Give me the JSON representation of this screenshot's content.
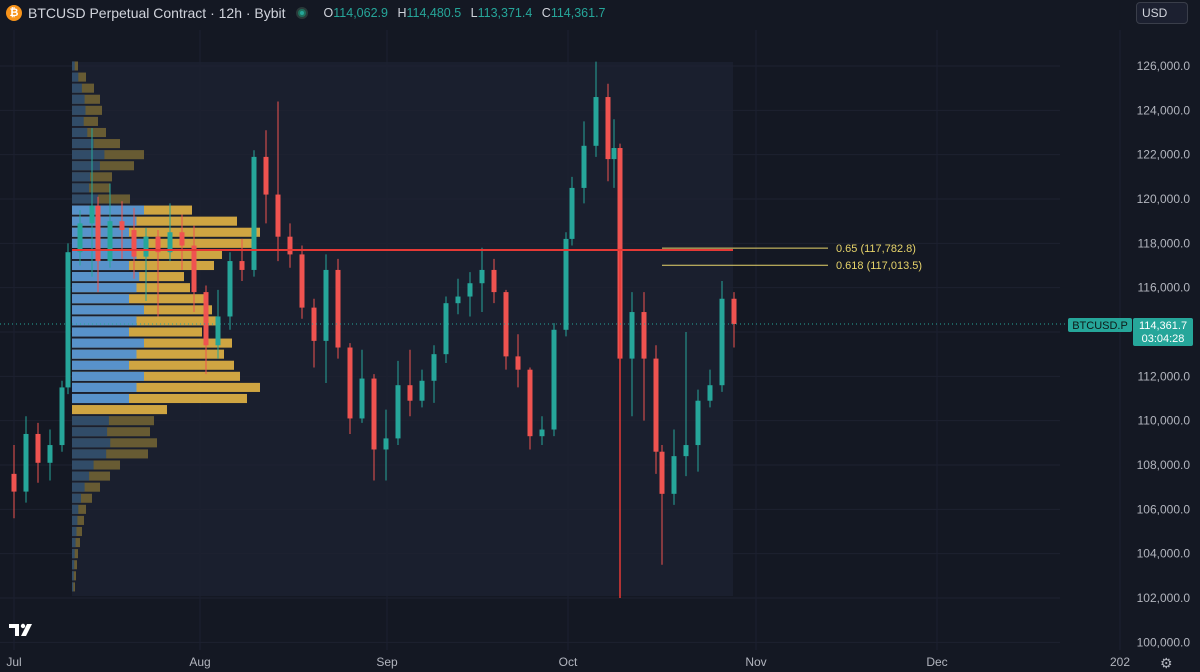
{
  "header": {
    "coin_icon": "bitcoin-icon",
    "symbol_title": "BTCUSD Perpetual Contract · 12h · Bybit",
    "ohlc": {
      "o_label": "O",
      "o_value": "114,062.9",
      "h_label": "H",
      "h_value": "114,480.5",
      "l_label": "L",
      "l_value": "113,371.4",
      "c_label": "C",
      "c_value": "114,361.7"
    },
    "currency": "USD"
  },
  "price_tag": {
    "symbol": "BTCUSD.P",
    "price": "114,361.7",
    "countdown": "03:04:28"
  },
  "fib_levels": [
    {
      "label": "0.65 (117,782.8)",
      "value": 117782.8
    },
    {
      "label": "0.618 (117,013.5)",
      "value": 117013.5
    }
  ],
  "colors": {
    "background": "#141823",
    "panel": "#1a1f2e",
    "up": "#26a69a",
    "down": "#ef5350",
    "vp_value_area": "#4a90d9",
    "vp_yellow": "#e8b845",
    "vp_dim": "#7a6a35",
    "red_line": "#e53935",
    "fib": "#e6d36a"
  },
  "chart_data": {
    "type": "candlestick",
    "yaxis_ticks": [
      100000,
      102000,
      104000,
      106000,
      108000,
      110000,
      112000,
      114000,
      116000,
      118000,
      120000,
      122000,
      124000,
      126000
    ],
    "yaxis_tick_labels": [
      "100,000.0",
      "102,000.0",
      "104,000.0",
      "106,000.0",
      "108,000.0",
      "110,000.0",
      "112,000.0",
      "114,000.0",
      "116,000.0",
      "118,000.0",
      "120,000.0",
      "122,000.0",
      "124,000.0",
      "126,000.0"
    ],
    "xaxis_labels": [
      "Jul",
      "Aug",
      "Sep",
      "Oct",
      "Nov",
      "Dec",
      "202"
    ],
    "ylim": [
      99500,
      127200
    ],
    "last_price": 114361.7,
    "horizontal_line": 117700,
    "vertical_line": {
      "date": "2025-10-10",
      "low": 102000
    },
    "candles": [
      [
        "2025-07-01",
        107600,
        108900,
        105600,
        106800
      ],
      [
        "2025-07-03",
        106800,
        110200,
        106300,
        109400
      ],
      [
        "2025-07-05",
        109400,
        109900,
        107200,
        108100
      ],
      [
        "2025-07-07",
        108100,
        109600,
        107300,
        108900
      ],
      [
        "2025-07-09",
        108900,
        111800,
        108600,
        111500
      ],
      [
        "2025-07-10",
        111500,
        118000,
        111200,
        117600
      ],
      [
        "2025-07-12",
        117600,
        119500,
        117000,
        118900
      ],
      [
        "2025-07-14",
        118900,
        123200,
        116500,
        119700
      ],
      [
        "2025-07-15",
        119700,
        120100,
        115800,
        117200
      ],
      [
        "2025-07-17",
        117200,
        120700,
        116900,
        119000
      ],
      [
        "2025-07-19",
        119000,
        119900,
        117300,
        118600
      ],
      [
        "2025-07-21",
        118600,
        119600,
        116400,
        117400
      ],
      [
        "2025-07-23",
        117400,
        118700,
        115400,
        118300
      ],
      [
        "2025-07-25",
        118300,
        118600,
        114700,
        117600
      ],
      [
        "2025-07-27",
        117600,
        119800,
        117200,
        118500
      ],
      [
        "2025-07-29",
        118500,
        119300,
        116800,
        117900
      ],
      [
        "2025-07-31",
        117900,
        118800,
        114900,
        115800
      ],
      [
        "2025-08-02",
        115800,
        116100,
        112100,
        113400
      ],
      [
        "2025-08-04",
        113400,
        115900,
        112800,
        114700
      ],
      [
        "2025-08-06",
        114700,
        117600,
        114100,
        117200
      ],
      [
        "2025-08-08",
        117200,
        118200,
        116300,
        116800
      ],
      [
        "2025-08-10",
        116800,
        122200,
        116500,
        121900
      ],
      [
        "2025-08-12",
        121900,
        123100,
        118900,
        120200
      ],
      [
        "2025-08-14",
        120200,
        124400,
        117200,
        118300
      ],
      [
        "2025-08-16",
        118300,
        118900,
        116900,
        117500
      ],
      [
        "2025-08-18",
        117500,
        117900,
        114600,
        115100
      ],
      [
        "2025-08-20",
        115100,
        115500,
        112400,
        113600
      ],
      [
        "2025-08-22",
        113600,
        117500,
        111700,
        116800
      ],
      [
        "2025-08-24",
        116800,
        117300,
        112800,
        113300
      ],
      [
        "2025-08-26",
        113300,
        113500,
        109400,
        110100
      ],
      [
        "2025-08-28",
        110100,
        113200,
        109900,
        111900
      ],
      [
        "2025-08-30",
        111900,
        112100,
        107300,
        108700
      ],
      [
        "2025-09-01",
        108700,
        110500,
        107300,
        109200
      ],
      [
        "2025-09-03",
        109200,
        112700,
        108900,
        111600
      ],
      [
        "2025-09-05",
        111600,
        113200,
        110200,
        110900
      ],
      [
        "2025-09-07",
        110900,
        112300,
        110600,
        111800
      ],
      [
        "2025-09-09",
        111800,
        113400,
        110800,
        113000
      ],
      [
        "2025-09-11",
        113000,
        115600,
        112600,
        115300
      ],
      [
        "2025-09-13",
        115300,
        116400,
        114800,
        115600
      ],
      [
        "2025-09-15",
        115600,
        116700,
        114700,
        116200
      ],
      [
        "2025-09-17",
        116200,
        117800,
        114900,
        116800
      ],
      [
        "2025-09-19",
        116800,
        117300,
        115300,
        115800
      ],
      [
        "2025-09-21",
        115800,
        115900,
        112300,
        112900
      ],
      [
        "2025-09-23",
        112900,
        113900,
        111500,
        112300
      ],
      [
        "2025-09-25",
        112300,
        112400,
        108700,
        109300
      ],
      [
        "2025-09-27",
        109300,
        110200,
        108900,
        109600
      ],
      [
        "2025-09-29",
        109600,
        114400,
        109300,
        114100
      ],
      [
        "2025-10-01",
        114100,
        118500,
        113800,
        118200
      ],
      [
        "2025-10-02",
        118200,
        121000,
        117900,
        120500
      ],
      [
        "2025-10-04",
        120500,
        123500,
        119800,
        122400
      ],
      [
        "2025-10-06",
        122400,
        126200,
        121900,
        124600
      ],
      [
        "2025-10-08",
        124600,
        125200,
        120800,
        121800
      ],
      [
        "2025-10-09",
        121800,
        123600,
        120500,
        122300
      ],
      [
        "2025-10-10",
        122300,
        122500,
        102000,
        112800
      ],
      [
        "2025-10-12",
        112800,
        115800,
        110200,
        114900
      ],
      [
        "2025-10-14",
        114900,
        115800,
        110000,
        112800
      ],
      [
        "2025-10-16",
        112800,
        113400,
        107600,
        108600
      ],
      [
        "2025-10-17",
        108600,
        108900,
        103500,
        106700
      ],
      [
        "2025-10-19",
        106700,
        109600,
        106200,
        108400
      ],
      [
        "2025-10-21",
        108400,
        114000,
        107500,
        108900
      ],
      [
        "2025-10-23",
        108900,
        111400,
        107700,
        110900
      ],
      [
        "2025-10-25",
        110900,
        112300,
        110600,
        111600
      ],
      [
        "2025-10-27",
        111600,
        116300,
        111300,
        115500
      ],
      [
        "2025-10-29",
        115500,
        115800,
        113300,
        114361.7
      ]
    ],
    "volume_profile": {
      "blue_top": 119500,
      "blue_bottom": 110600,
      "bins": [
        [
          126000,
          6,
          0
        ],
        [
          125500,
          14,
          0
        ],
        [
          125000,
          22,
          0
        ],
        [
          124500,
          28,
          0
        ],
        [
          124000,
          30,
          0
        ],
        [
          123500,
          26,
          0
        ],
        [
          123000,
          34,
          0
        ],
        [
          122500,
          48,
          0
        ],
        [
          122000,
          72,
          0
        ],
        [
          121500,
          62,
          0
        ],
        [
          121000,
          40,
          0
        ],
        [
          120500,
          38,
          0
        ],
        [
          120000,
          58,
          0
        ],
        [
          119500,
          120,
          1
        ],
        [
          119000,
          165,
          1
        ],
        [
          118500,
          188,
          1
        ],
        [
          118000,
          182,
          1
        ],
        [
          117500,
          150,
          1
        ],
        [
          117000,
          142,
          1
        ],
        [
          116500,
          112,
          1
        ],
        [
          116000,
          118,
          1
        ],
        [
          115500,
          132,
          1
        ],
        [
          115000,
          140,
          1
        ],
        [
          114500,
          145,
          1
        ],
        [
          114000,
          130,
          1
        ],
        [
          113500,
          160,
          1
        ],
        [
          113000,
          152,
          1
        ],
        [
          112500,
          162,
          1
        ],
        [
          112000,
          168,
          1
        ],
        [
          111500,
          188,
          1
        ],
        [
          111000,
          175,
          1
        ],
        [
          110500,
          95,
          1
        ],
        [
          110000,
          82,
          0
        ],
        [
          109500,
          78,
          0
        ],
        [
          109000,
          85,
          0
        ],
        [
          108500,
          76,
          0
        ],
        [
          108000,
          48,
          0
        ],
        [
          107500,
          38,
          0
        ],
        [
          107000,
          28,
          0
        ],
        [
          106500,
          20,
          0
        ],
        [
          106000,
          14,
          0
        ],
        [
          105500,
          12,
          0
        ],
        [
          105000,
          10,
          0
        ],
        [
          104500,
          8,
          0
        ],
        [
          104000,
          6,
          0
        ],
        [
          103500,
          5,
          0
        ],
        [
          103000,
          4,
          0
        ],
        [
          102500,
          3,
          0
        ]
      ]
    }
  }
}
